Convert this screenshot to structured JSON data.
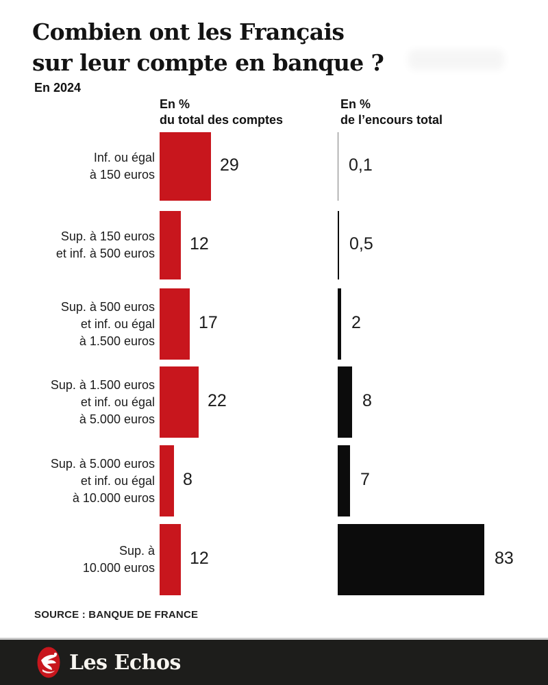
{
  "header": {
    "title_lines": [
      "Combien ont les Français",
      "sur leur compte en banque ?"
    ],
    "subtitle": "En 2024"
  },
  "chart_data": {
    "type": "bar",
    "orientation": "horizontal",
    "column_headers": [
      {
        "lines": [
          "En %",
          "du total des comptes"
        ]
      },
      {
        "lines": [
          "En %",
          "de l’encours total"
        ]
      }
    ],
    "categories": [
      [
        "Inf. ou égal",
        "à 150 euros"
      ],
      [
        "Sup. à 150 euros",
        "et inf. à 500 euros"
      ],
      [
        "Sup. à 500 euros",
        "et inf. ou égal",
        "à 1.500 euros"
      ],
      [
        "Sup. à 1.500 euros",
        "et inf. ou égal",
        "à 5.000 euros"
      ],
      [
        "Sup. à 5.000 euros",
        "et inf. ou égal",
        "à 10.000 euros"
      ],
      [
        "Sup. à",
        "10.000 euros"
      ]
    ],
    "series": [
      {
        "name": "En % du total des comptes",
        "color": "#c8161d",
        "values": [
          29,
          12,
          17,
          22,
          8,
          12
        ],
        "labels": [
          "29",
          "12",
          "17",
          "22",
          "8",
          "12"
        ]
      },
      {
        "name": "En % de l’encours total",
        "color": "#0c0c0c",
        "values": [
          0.1,
          0.5,
          2,
          8,
          7,
          83
        ],
        "labels": [
          "0,1",
          "0,5",
          "2",
          "8",
          "7",
          "83"
        ]
      }
    ],
    "value_unit": "%",
    "xlim": [
      0,
      90
    ],
    "grid": false,
    "legend_position": "column-headers"
  },
  "source": "SOURCE : BANQUE DE FRANCE",
  "footer": {
    "brand": "Les Echos",
    "background": "#1d1d1b",
    "logo_color": "#c8161d"
  }
}
